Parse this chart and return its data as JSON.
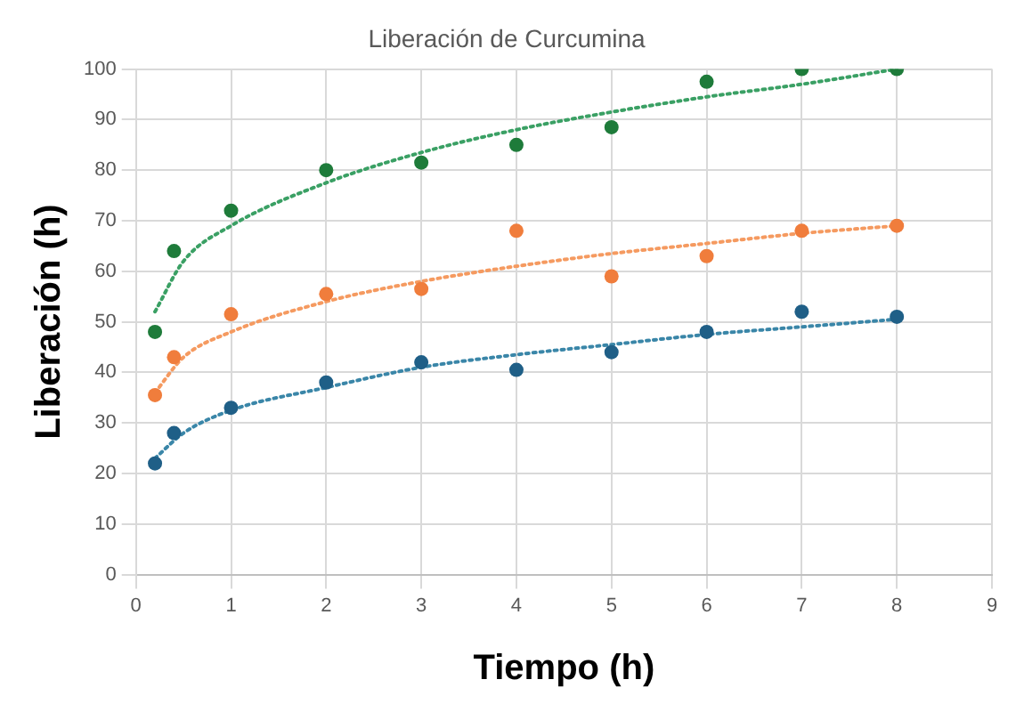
{
  "chart_data": {
    "type": "scatter",
    "title": "Liberación de Curcumina",
    "xlabel": "Tiempo (h)",
    "ylabel": "Liberación (h)",
    "xlim": [
      0,
      9
    ],
    "xticks": [
      0,
      1,
      2,
      3,
      4,
      5,
      6,
      7,
      8,
      9
    ],
    "ylim": [
      0,
      100
    ],
    "yticks": [
      0,
      10,
      20,
      30,
      40,
      50,
      60,
      70,
      80,
      90,
      100
    ],
    "grid": true,
    "legend": false,
    "marker": "circle",
    "series": [
      {
        "color": "#1e7b3a",
        "x": [
          0.2,
          0.4,
          1,
          2,
          3,
          4,
          5,
          6,
          7,
          8
        ],
        "values": [
          48,
          64,
          72,
          80,
          81.5,
          85,
          88.5,
          97.5,
          100,
          100
        ]
      },
      {
        "color": "#f07d3c",
        "x": [
          0.2,
          0.4,
          1,
          2,
          3,
          4,
          5,
          6,
          7,
          8
        ],
        "values": [
          35.5,
          43,
          51.5,
          55.5,
          56.5,
          68,
          59,
          63,
          68,
          69
        ]
      },
      {
        "color": "#1f5f87",
        "x": [
          0.2,
          0.4,
          1,
          2,
          3,
          4,
          5,
          6,
          7,
          8
        ],
        "values": [
          22,
          28,
          33,
          38,
          42,
          40.5,
          44,
          48,
          52,
          51
        ]
      },
      {
        "type": "line",
        "marker": "none",
        "line_style": "dotted",
        "color": "#3aa064",
        "x": [
          0.2,
          0.5,
          1,
          2,
          3,
          4,
          5,
          6,
          7,
          8
        ],
        "values": [
          52,
          62,
          69,
          77.5,
          83.5,
          88,
          91.5,
          94.5,
          97,
          100
        ]
      },
      {
        "type": "line",
        "marker": "none",
        "line_style": "dotted",
        "color": "#f59a60",
        "x": [
          0.2,
          0.5,
          1,
          2,
          3,
          4,
          5,
          6,
          7,
          8
        ],
        "values": [
          36,
          43,
          48,
          54,
          58,
          61,
          63.5,
          65.5,
          67.5,
          69
        ]
      },
      {
        "type": "line",
        "marker": "none",
        "line_style": "dotted",
        "color": "#3a86a8",
        "x": [
          0.2,
          0.5,
          1,
          2,
          3,
          4,
          5,
          6,
          7,
          8
        ],
        "values": [
          23,
          28,
          32.5,
          37,
          41,
          43.5,
          45.5,
          47.5,
          49,
          50.5
        ]
      }
    ]
  }
}
